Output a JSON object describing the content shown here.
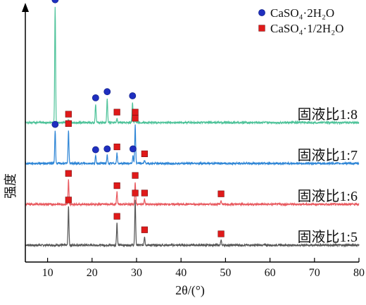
{
  "chart_data": {
    "type": "line",
    "xlabel": "2θ/(°)",
    "ylabel": "强度",
    "xlim": [
      5,
      80
    ],
    "x_ticks": [
      10,
      20,
      30,
      40,
      50,
      60,
      70,
      80
    ],
    "legend": {
      "placement": "top-right",
      "entries": [
        {
          "label": "CaSO₄·2H₂O",
          "marker": "circle",
          "color": "#1f2fbf"
        },
        {
          "label": "CaSO₄·1/2H₂O",
          "marker": "square",
          "color": "#e01a1a"
        }
      ]
    },
    "series": [
      {
        "name": "固液比1:5",
        "color": "#555555",
        "baseline": 0.0,
        "peaks": [
          {
            "x": 14.7,
            "h": 0.95
          },
          {
            "x": 25.6,
            "h": 0.55
          },
          {
            "x": 29.7,
            "h": 1.12
          },
          {
            "x": 31.8,
            "h": 0.22
          },
          {
            "x": 49.0,
            "h": 0.12
          }
        ],
        "markers": [
          {
            "x": 14.7,
            "type": "square"
          },
          {
            "x": 25.6,
            "type": "square"
          },
          {
            "x": 29.7,
            "type": "square"
          },
          {
            "x": 31.8,
            "type": "square"
          },
          {
            "x": 49.0,
            "type": "square"
          }
        ]
      },
      {
        "name": "固液比1:6",
        "color": "#e8595f",
        "baseline": 1.0,
        "peaks": [
          {
            "x": 14.7,
            "h": 0.6
          },
          {
            "x": 25.6,
            "h": 0.3
          },
          {
            "x": 29.7,
            "h": 0.55
          },
          {
            "x": 31.8,
            "h": 0.12
          },
          {
            "x": 49.0,
            "h": 0.1
          }
        ],
        "markers": [
          {
            "x": 14.7,
            "type": "square"
          },
          {
            "x": 25.6,
            "type": "square"
          },
          {
            "x": 29.7,
            "type": "square"
          },
          {
            "x": 31.8,
            "type": "square"
          },
          {
            "x": 49.0,
            "type": "square"
          }
        ]
      },
      {
        "name": "固液比1:7",
        "color": "#2f86d6",
        "baseline": 2.0,
        "peaks": [
          {
            "x": 11.7,
            "h": 0.8
          },
          {
            "x": 14.7,
            "h": 0.82
          },
          {
            "x": 20.8,
            "h": 0.18
          },
          {
            "x": 23.4,
            "h": 0.2
          },
          {
            "x": 25.6,
            "h": 0.25
          },
          {
            "x": 29.2,
            "h": 0.2
          },
          {
            "x": 29.7,
            "h": 0.95
          },
          {
            "x": 31.8,
            "h": 0.08
          }
        ],
        "markers": [
          {
            "x": 11.7,
            "type": "circle"
          },
          {
            "x": 14.7,
            "type": "square"
          },
          {
            "x": 20.8,
            "type": "circle"
          },
          {
            "x": 23.4,
            "type": "circle"
          },
          {
            "x": 25.6,
            "type": "square"
          },
          {
            "x": 29.2,
            "type": "circle"
          },
          {
            "x": 29.7,
            "type": "square"
          },
          {
            "x": 31.8,
            "type": "square"
          }
        ]
      },
      {
        "name": "固液比1:8",
        "color": "#4fc39a",
        "baseline": 3.0,
        "peaks": [
          {
            "x": 11.7,
            "h": 2.85
          },
          {
            "x": 14.7,
            "h": 0.05
          },
          {
            "x": 20.8,
            "h": 0.45
          },
          {
            "x": 23.4,
            "h": 0.6
          },
          {
            "x": 25.6,
            "h": 0.1
          },
          {
            "x": 29.1,
            "h": 0.5
          },
          {
            "x": 29.7,
            "h": 0.1
          }
        ],
        "markers": [
          {
            "x": 11.7,
            "type": "circle"
          },
          {
            "x": 14.7,
            "type": "square"
          },
          {
            "x": 20.8,
            "type": "circle"
          },
          {
            "x": 23.4,
            "type": "circle"
          },
          {
            "x": 25.6,
            "type": "square"
          },
          {
            "x": 29.1,
            "type": "circle"
          },
          {
            "x": 29.7,
            "type": "square"
          }
        ]
      }
    ]
  }
}
